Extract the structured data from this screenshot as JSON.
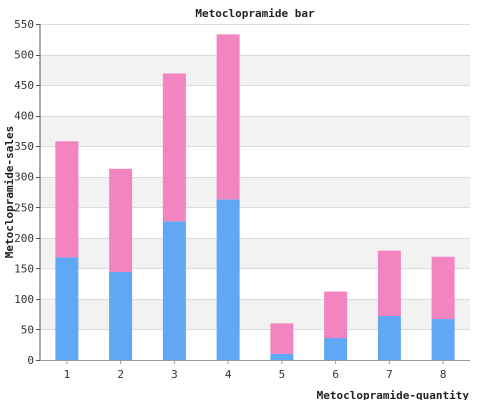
{
  "chart_data": {
    "type": "bar",
    "stacked": true,
    "title": "Metoclopramide bar",
    "xlabel": "Metoclopramide-quantity",
    "ylabel": "Metoclopramide-sales",
    "categories": [
      "1",
      "2",
      "3",
      "4",
      "5",
      "6",
      "7",
      "8"
    ],
    "ylim": [
      0,
      550
    ],
    "yticks": [
      0,
      50,
      100,
      150,
      200,
      250,
      300,
      350,
      400,
      450,
      500,
      550
    ],
    "grid": true,
    "series": [
      {
        "color": "#60a8f5",
        "values": [
          168,
          144,
          227,
          263,
          10,
          36,
          72,
          67
        ]
      },
      {
        "color": "#f285bf",
        "values": [
          190,
          169,
          242,
          270,
          50,
          76,
          107,
          102
        ]
      }
    ]
  }
}
